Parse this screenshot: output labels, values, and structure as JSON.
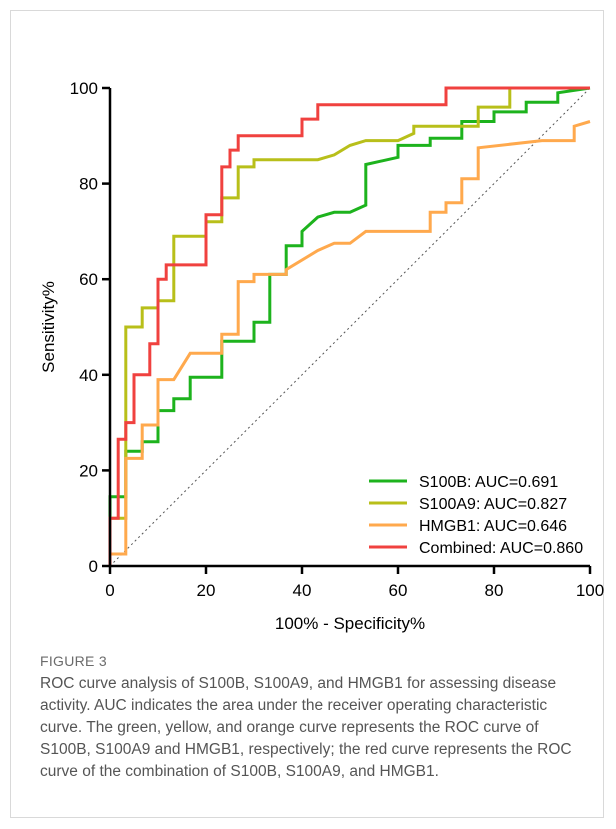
{
  "figure": {
    "label": "FIGURE 3",
    "caption": "ROC curve analysis of S100B, S100A9, and HMGB1 for assessing disease activity. AUC indicates the area under the receiver operating characteristic curve. The green, yellow, and orange curve represents the ROC curve of S100B, S100A9 and HMGB1, respectively; the red curve represents the ROC curve of the combination of S100B, S100A9, and HMGB1."
  },
  "chart_data": {
    "type": "line",
    "title": "",
    "xlabel": "100% - Specificity%",
    "ylabel": "Sensitivity%",
    "xlim": [
      0,
      100
    ],
    "ylim": [
      0,
      100
    ],
    "xticks": [
      0,
      20,
      40,
      60,
      80,
      100
    ],
    "yticks": [
      0,
      20,
      40,
      60,
      80,
      100
    ],
    "grid": false,
    "legend_position": "bottom-right",
    "reference_line": "diagonal-dotted",
    "series": [
      {
        "name": "S100B: AUC=0.691",
        "color": "#1db31d",
        "x": [
          0,
          0,
          3.3,
          3.3,
          6.7,
          6.7,
          10,
          10,
          13.3,
          13.3,
          16.7,
          16.7,
          23.3,
          23.3,
          30,
          30,
          33.3,
          33.3,
          36.7,
          36.7,
          40,
          40,
          43.3,
          46.7,
          50,
          53.3,
          53.3,
          60,
          60,
          66.7,
          66.7,
          73.3,
          73.3,
          80,
          80,
          86.7,
          86.7,
          93.3,
          93.3,
          100
        ],
        "y": [
          0,
          14.5,
          14.5,
          24,
          24,
          26,
          26,
          32.5,
          32.5,
          35,
          35,
          39.5,
          39.5,
          47,
          47,
          51,
          51,
          61,
          61,
          67,
          67,
          70,
          73,
          74,
          74,
          75.5,
          84,
          85.5,
          88,
          88,
          89.5,
          89.5,
          93,
          93,
          95,
          95,
          97,
          97,
          99,
          100
        ]
      },
      {
        "name": "S100A9: AUC=0.827",
        "color": "#b8bf1a",
        "x": [
          0,
          0,
          3.3,
          3.3,
          6.7,
          6.7,
          10,
          10,
          13.3,
          13.3,
          20,
          20,
          23.3,
          23.3,
          26.7,
          26.7,
          30,
          30,
          43.3,
          46.7,
          50,
          53.3,
          60,
          63.3,
          63.3,
          76.7,
          76.7,
          83.3,
          83.3,
          100
        ],
        "y": [
          0,
          10,
          10,
          50,
          50,
          54,
          54,
          55.5,
          55.5,
          69,
          69,
          72,
          72,
          77,
          77,
          83.5,
          83.5,
          85,
          85,
          86,
          88,
          89,
          89,
          90.5,
          92,
          92,
          96,
          96,
          100,
          100
        ]
      },
      {
        "name": "HMGB1: AUC=0.646",
        "color": "#ffa94d",
        "x": [
          0,
          0,
          3.3,
          3.3,
          6.7,
          6.7,
          10,
          10,
          13.3,
          16.7,
          23.3,
          23.3,
          26.7,
          26.7,
          30,
          30,
          36.7,
          36.7,
          43.3,
          46.7,
          50,
          53.3,
          66.7,
          66.7,
          70,
          70,
          73.3,
          73.3,
          76.7,
          76.7,
          90,
          96.7,
          96.7,
          100
        ],
        "y": [
          0,
          2.5,
          2.5,
          22.5,
          22.5,
          29.5,
          29.5,
          39,
          39,
          44.5,
          44.5,
          48.5,
          48.5,
          59.5,
          59.5,
          61,
          61,
          62,
          66,
          67.5,
          67.5,
          70,
          70,
          74,
          74,
          76,
          76,
          81,
          81,
          87.5,
          89,
          89,
          92,
          93
        ]
      },
      {
        "name": "Combined: AUC=0.860",
        "color": "#f0413f",
        "x": [
          0,
          0,
          1.7,
          1.7,
          3.3,
          3.3,
          5,
          5,
          8.3,
          8.3,
          10,
          10,
          11.7,
          11.7,
          20,
          20,
          23.3,
          23.3,
          25,
          25,
          26.7,
          26.7,
          40,
          40,
          43.3,
          43.3,
          70,
          70,
          100
        ],
        "y": [
          0,
          10,
          10,
          26.5,
          26.5,
          30,
          30,
          40,
          40,
          46.5,
          46.5,
          60,
          60,
          63,
          63,
          73.5,
          73.5,
          83.5,
          83.5,
          87,
          87,
          90,
          90,
          93.5,
          93.5,
          96.5,
          96.5,
          100,
          100
        ]
      }
    ]
  }
}
